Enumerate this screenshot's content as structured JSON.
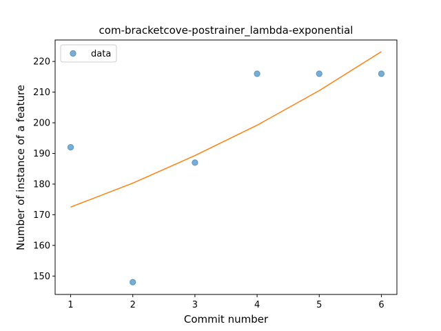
{
  "chart_data": {
    "type": "scatter",
    "title": "com-bracketcove-postrainer_lambda-exponential",
    "xlabel": "Commit number",
    "ylabel": "Number of instance of a feature",
    "xlim": [
      0.75,
      6.25
    ],
    "ylim": [
      144,
      227
    ],
    "xticks": [
      1,
      2,
      3,
      4,
      5,
      6
    ],
    "yticks": [
      150,
      160,
      170,
      180,
      190,
      200,
      210,
      220
    ],
    "grid": false,
    "legend_position": "upper left",
    "series": [
      {
        "name": "data",
        "kind": "scatter",
        "color": "#1f77b4",
        "x": [
          1,
          2,
          3,
          4,
          5,
          6
        ],
        "y": [
          192,
          148,
          187,
          216,
          216,
          216
        ]
      },
      {
        "kind": "line",
        "color": "#ff7f0e",
        "x": [
          1,
          2,
          3,
          4,
          5,
          6
        ],
        "y": [
          172.5,
          180.3,
          189.3,
          199.2,
          210.5,
          223.2
        ]
      }
    ]
  }
}
